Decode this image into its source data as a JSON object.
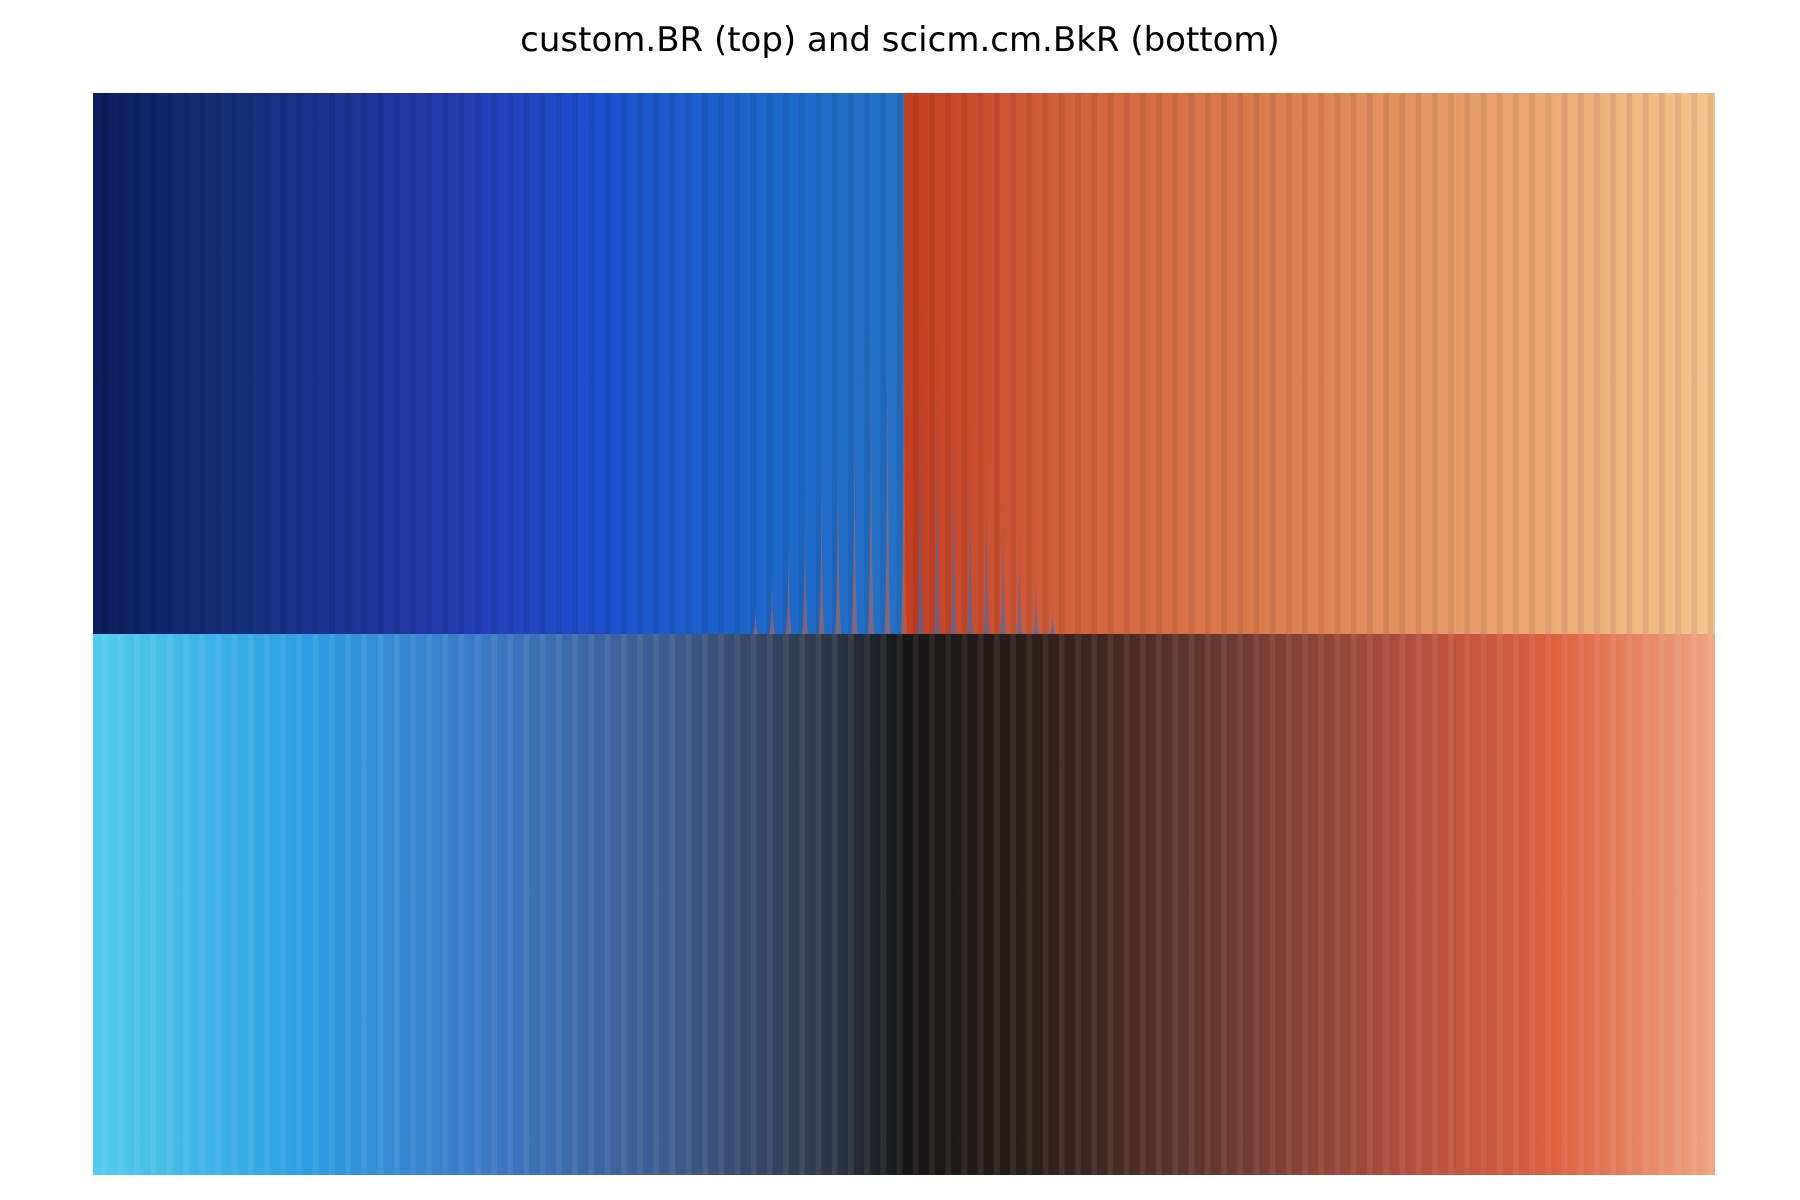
{
  "chart_data": {
    "type": "heatmap",
    "title": "custom.BR (top) and scicm.cm.BkR (bottom)",
    "xlabel": "",
    "ylabel": "",
    "axes_visible": false,
    "grid": false,
    "legend": "none",
    "value_range": [
      0,
      1
    ],
    "stripe_count": 100,
    "panels": [
      {
        "position": "top",
        "colormap": "custom.BR",
        "colors": [
          {
            "stop": 0.0,
            "color": "#0c1e5c"
          },
          {
            "stop": 0.14,
            "color": "#16307e"
          },
          {
            "stop": 0.3,
            "color": "#2238a8"
          },
          {
            "stop": 0.4,
            "color": "#2346c2"
          },
          {
            "stop": 0.47,
            "color": "#1e52cc"
          },
          {
            "stop": 0.62,
            "color": "#1b68ca"
          },
          {
            "stop": 0.74,
            "color": "#2572c6"
          },
          {
            "stop": 0.5,
            "color": "#2572c6"
          },
          {
            "stop": 0.5,
            "color": "#c43e22"
          },
          {
            "stop": 0.6,
            "color": "#d2623e"
          },
          {
            "stop": 0.72,
            "color": "#dc7c4c"
          },
          {
            "stop": 0.86,
            "color": "#e9a06e"
          },
          {
            "stop": 1.0,
            "color": "#f4c48e"
          }
        ]
      },
      {
        "position": "bottom",
        "colormap": "scicm.cm.BkR",
        "colors": [
          {
            "stop": 0.0,
            "color": "#52cdee"
          },
          {
            "stop": 0.13,
            "color": "#2d9ee2"
          },
          {
            "stop": 0.24,
            "color": "#3c78c6"
          },
          {
            "stop": 0.36,
            "color": "#3d5a8a"
          },
          {
            "stop": 0.46,
            "color": "#2c3442"
          },
          {
            "stop": 0.5,
            "color": "#161616"
          },
          {
            "stop": 0.58,
            "color": "#2c1e1a"
          },
          {
            "stop": 0.7,
            "color": "#6a3a30"
          },
          {
            "stop": 0.82,
            "color": "#b8503e"
          },
          {
            "stop": 0.9,
            "color": "#dc6040"
          },
          {
            "stop": 1.0,
            "color": "#eea484"
          }
        ]
      }
    ]
  }
}
